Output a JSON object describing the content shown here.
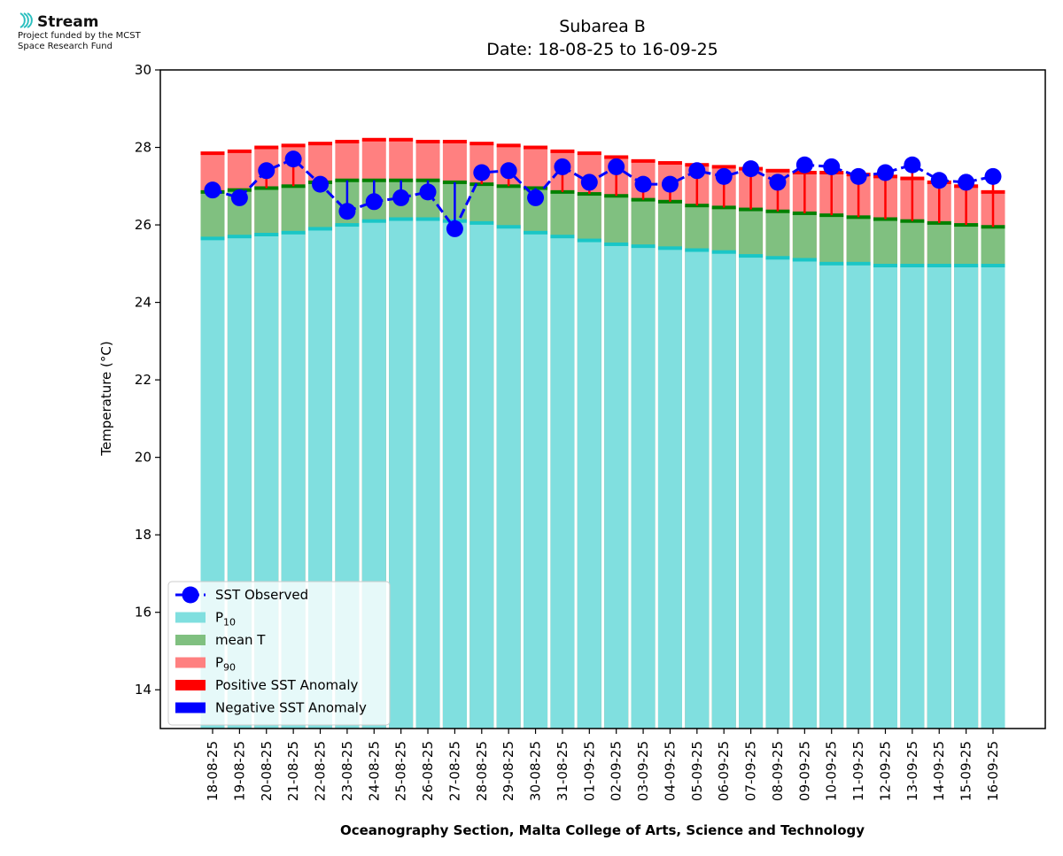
{
  "logo": {
    "brand": "Stream",
    "credit_line1": "Project funded by the MCST",
    "credit_line2": "Space Research Fund"
  },
  "footer": "Oceanography Section, Malta College of Arts, Science and Technology",
  "chart_data": {
    "type": "bar",
    "title": "Subarea B",
    "subtitle": "Date: 18-08-25 to 16-09-25",
    "xlabel": "",
    "ylabel": "Temperature (°C)",
    "ylim": [
      13,
      30
    ],
    "yticks": [
      14,
      16,
      18,
      20,
      22,
      24,
      26,
      28,
      30
    ],
    "grid": false,
    "legend_position": "bottom-left",
    "categories": [
      "18-08-25",
      "19-08-25",
      "20-08-25",
      "21-08-25",
      "22-08-25",
      "23-08-25",
      "24-08-25",
      "25-08-25",
      "26-08-25",
      "27-08-25",
      "28-08-25",
      "29-08-25",
      "30-08-25",
      "31-08-25",
      "01-09-25",
      "02-09-25",
      "03-09-25",
      "04-09-25",
      "05-09-25",
      "06-09-25",
      "07-09-25",
      "08-09-25",
      "09-09-25",
      "10-09-25",
      "11-09-25",
      "12-09-25",
      "13-09-25",
      "14-09-25",
      "15-09-25",
      "16-09-25"
    ],
    "series": [
      {
        "name": "SST Observed",
        "kind": "line-markers",
        "color": "#0000ff",
        "values": [
          26.9,
          26.7,
          27.4,
          27.7,
          27.05,
          26.35,
          26.6,
          26.7,
          26.85,
          25.9,
          27.35,
          27.4,
          26.7,
          27.5,
          27.1,
          27.5,
          27.05,
          27.05,
          27.4,
          27.25,
          27.45,
          27.1,
          27.55,
          27.5,
          27.25,
          27.35,
          27.55,
          27.15,
          27.1,
          27.25
        ]
      },
      {
        "name": "P10",
        "name_base": "P",
        "name_sub": "10",
        "kind": "bar",
        "color": "#80dfdf",
        "edge": "#1ac6c6",
        "values": [
          25.65,
          25.7,
          25.75,
          25.8,
          25.9,
          26.0,
          26.1,
          26.15,
          26.15,
          26.1,
          26.05,
          25.95,
          25.8,
          25.7,
          25.6,
          25.5,
          25.45,
          25.4,
          25.35,
          25.3,
          25.2,
          25.15,
          25.1,
          25.0,
          25.0,
          24.95,
          24.95,
          24.95,
          24.95,
          24.95
        ]
      },
      {
        "name": "mean T",
        "kind": "bar",
        "color": "#80c080",
        "edge": "#008000",
        "values": [
          26.85,
          26.9,
          26.95,
          27.0,
          27.1,
          27.15,
          27.15,
          27.15,
          27.15,
          27.1,
          27.05,
          27.0,
          26.95,
          26.85,
          26.8,
          26.75,
          26.65,
          26.6,
          26.5,
          26.45,
          26.4,
          26.35,
          26.3,
          26.25,
          26.2,
          26.15,
          26.1,
          26.05,
          26.0,
          25.95
        ]
      },
      {
        "name": "P90",
        "name_base": "P",
        "name_sub": "90",
        "kind": "bar",
        "color": "#ff8080",
        "edge": "#ff0000",
        "values": [
          27.85,
          27.9,
          28.0,
          28.05,
          28.1,
          28.15,
          28.2,
          28.2,
          28.15,
          28.15,
          28.1,
          28.05,
          28.0,
          27.9,
          27.85,
          27.75,
          27.65,
          27.6,
          27.55,
          27.5,
          27.45,
          27.4,
          27.35,
          27.35,
          27.3,
          27.25,
          27.2,
          27.1,
          27.0,
          26.85
        ]
      },
      {
        "name": "Positive SST Anomaly",
        "kind": "anomaly",
        "color": "#ff0000"
      },
      {
        "name": "Negative SST Anomaly",
        "kind": "anomaly",
        "color": "#0000ff"
      }
    ]
  }
}
